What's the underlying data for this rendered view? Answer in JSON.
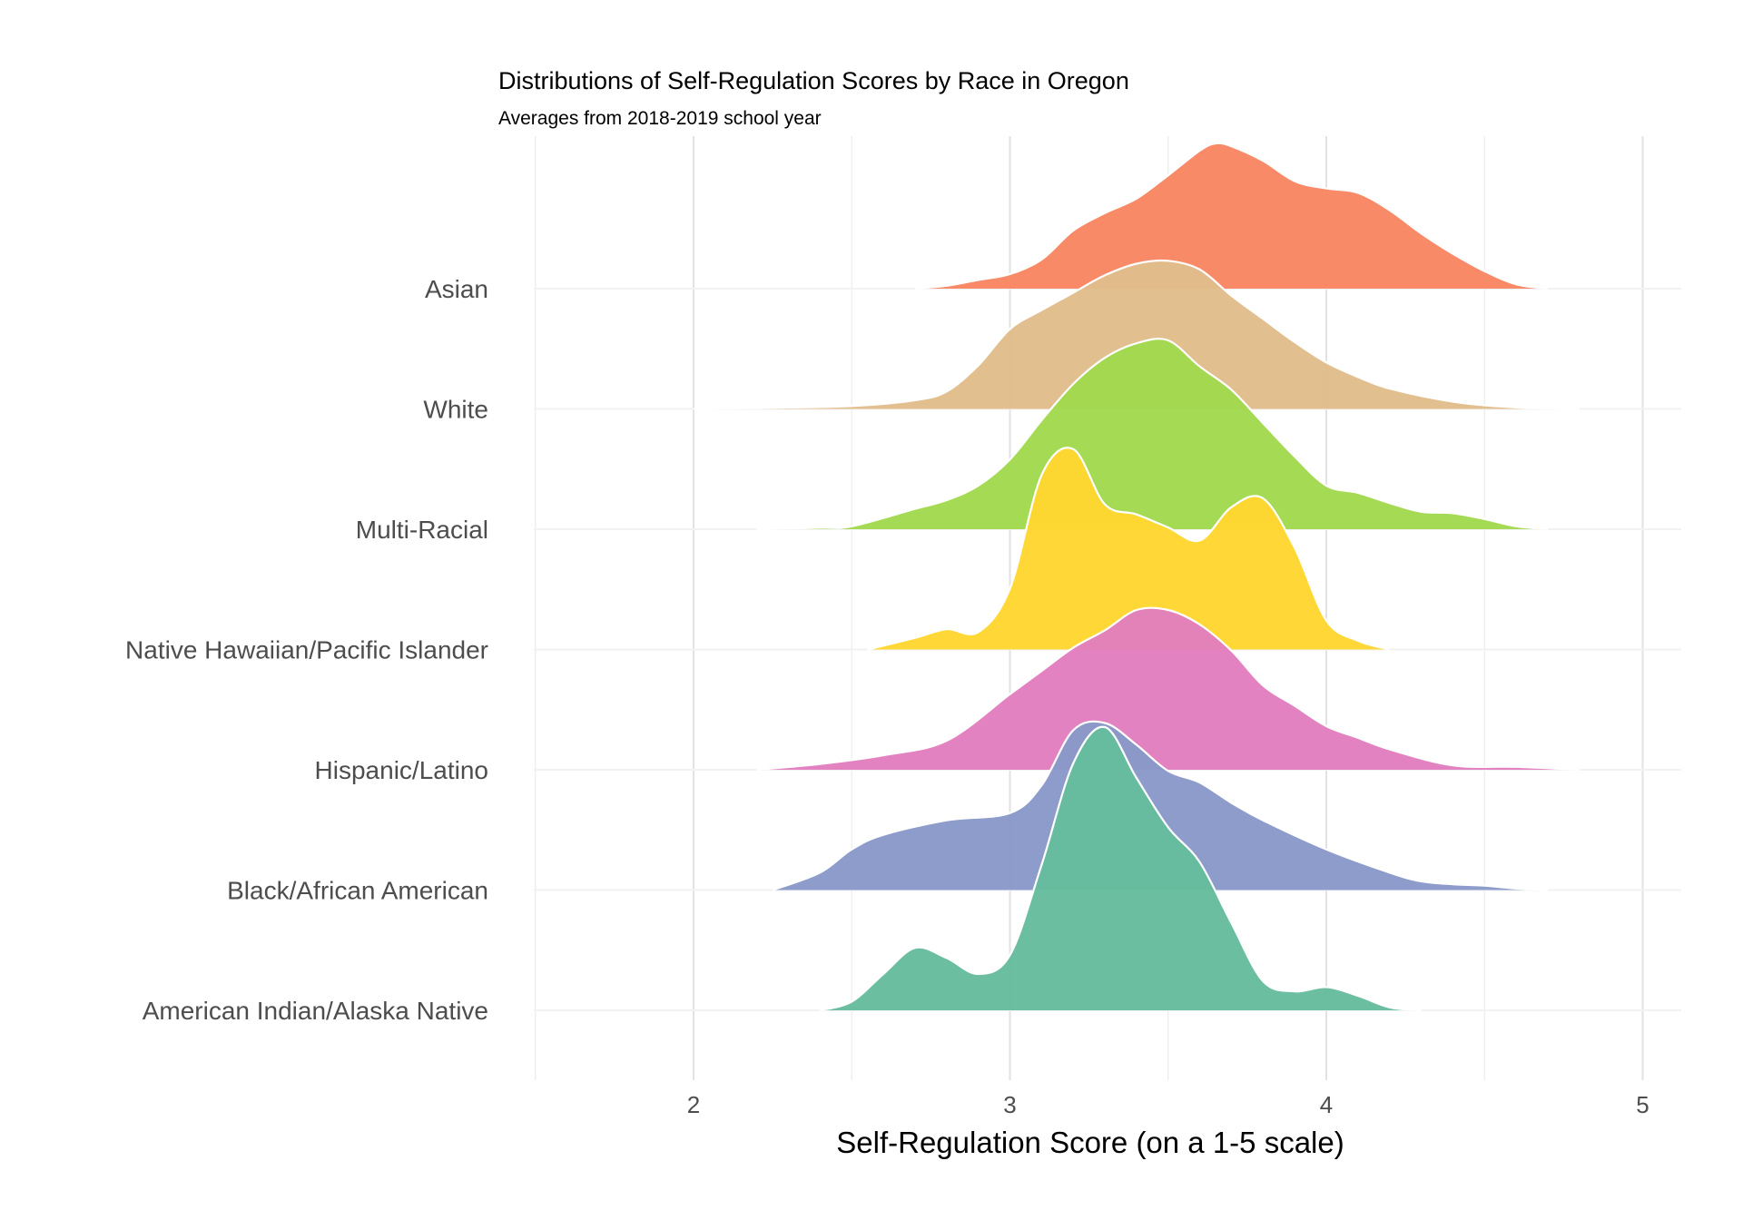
{
  "chart_data": {
    "type": "ridgeline",
    "title": "Distributions of Self-Regulation Scores by Race in Oregon",
    "subtitle": "Averages from 2018-2019 school year",
    "xlabel": "Self-Regulation Score (on a 1-5 scale)",
    "ylabel": "",
    "xlim": [
      1.5,
      5.1
    ],
    "x_ticks": [
      2,
      3,
      4,
      5
    ],
    "x_tick_labels": [
      "2",
      "3",
      "4",
      "5"
    ],
    "grid": true,
    "legend": "none",
    "series": [
      {
        "name": "Asian",
        "color": "#F88662",
        "density": [
          [
            2.7,
            0
          ],
          [
            2.8,
            0.02
          ],
          [
            2.9,
            0.06
          ],
          [
            3.0,
            0.1
          ],
          [
            3.1,
            0.2
          ],
          [
            3.2,
            0.4
          ],
          [
            3.3,
            0.52
          ],
          [
            3.4,
            0.62
          ],
          [
            3.5,
            0.78
          ],
          [
            3.6,
            0.95
          ],
          [
            3.65,
            1.0
          ],
          [
            3.7,
            0.98
          ],
          [
            3.8,
            0.88
          ],
          [
            3.9,
            0.74
          ],
          [
            4.0,
            0.69
          ],
          [
            4.1,
            0.66
          ],
          [
            4.2,
            0.54
          ],
          [
            4.3,
            0.38
          ],
          [
            4.4,
            0.24
          ],
          [
            4.5,
            0.12
          ],
          [
            4.6,
            0.03
          ],
          [
            4.7,
            0
          ]
        ]
      },
      {
        "name": "White",
        "color": "#E0BD8B",
        "density": [
          [
            2.0,
            0
          ],
          [
            2.3,
            0.01
          ],
          [
            2.5,
            0.02
          ],
          [
            2.7,
            0.06
          ],
          [
            2.8,
            0.12
          ],
          [
            2.9,
            0.3
          ],
          [
            3.0,
            0.55
          ],
          [
            3.1,
            0.68
          ],
          [
            3.2,
            0.8
          ],
          [
            3.3,
            0.92
          ],
          [
            3.4,
            1.0
          ],
          [
            3.5,
            1.02
          ],
          [
            3.6,
            0.96
          ],
          [
            3.7,
            0.78
          ],
          [
            3.8,
            0.62
          ],
          [
            3.9,
            0.46
          ],
          [
            4.0,
            0.32
          ],
          [
            4.1,
            0.22
          ],
          [
            4.2,
            0.14
          ],
          [
            4.4,
            0.05
          ],
          [
            4.6,
            0.01
          ],
          [
            4.8,
            0
          ]
        ]
      },
      {
        "name": "Multi-Racial",
        "color": "#A2D94E",
        "density": [
          [
            2.2,
            0
          ],
          [
            2.4,
            0.01
          ],
          [
            2.5,
            0.02
          ],
          [
            2.7,
            0.14
          ],
          [
            2.8,
            0.2
          ],
          [
            2.9,
            0.3
          ],
          [
            3.0,
            0.48
          ],
          [
            3.1,
            0.75
          ],
          [
            3.2,
            1.0
          ],
          [
            3.3,
            1.18
          ],
          [
            3.4,
            1.28
          ],
          [
            3.5,
            1.3
          ],
          [
            3.6,
            1.12
          ],
          [
            3.7,
            0.96
          ],
          [
            3.8,
            0.73
          ],
          [
            3.9,
            0.5
          ],
          [
            4.0,
            0.3
          ],
          [
            4.1,
            0.25
          ],
          [
            4.2,
            0.18
          ],
          [
            4.3,
            0.12
          ],
          [
            4.4,
            0.11
          ],
          [
            4.5,
            0.07
          ],
          [
            4.6,
            0.02
          ],
          [
            4.7,
            0
          ]
        ]
      },
      {
        "name": "Native Hawaiian/Pacific Islander",
        "color": "#FFD732",
        "density": [
          [
            2.55,
            0
          ],
          [
            2.7,
            0.08
          ],
          [
            2.8,
            0.14
          ],
          [
            2.9,
            0.12
          ],
          [
            3.0,
            0.42
          ],
          [
            3.1,
            1.2
          ],
          [
            3.2,
            1.38
          ],
          [
            3.3,
            1.0
          ],
          [
            3.4,
            0.93
          ],
          [
            3.5,
            0.84
          ],
          [
            3.6,
            0.75
          ],
          [
            3.7,
            0.98
          ],
          [
            3.8,
            1.04
          ],
          [
            3.9,
            0.7
          ],
          [
            4.0,
            0.2
          ],
          [
            4.1,
            0.06
          ],
          [
            4.2,
            0
          ]
        ]
      },
      {
        "name": "Hispanic/Latino",
        "color": "#E27EBE",
        "density": [
          [
            2.2,
            0
          ],
          [
            2.4,
            0.04
          ],
          [
            2.6,
            0.1
          ],
          [
            2.8,
            0.2
          ],
          [
            3.0,
            0.52
          ],
          [
            3.1,
            0.68
          ],
          [
            3.2,
            0.84
          ],
          [
            3.3,
            0.96
          ],
          [
            3.4,
            1.1
          ],
          [
            3.5,
            1.1
          ],
          [
            3.6,
            1.0
          ],
          [
            3.7,
            0.82
          ],
          [
            3.8,
            0.58
          ],
          [
            3.9,
            0.44
          ],
          [
            4.0,
            0.3
          ],
          [
            4.1,
            0.22
          ],
          [
            4.2,
            0.14
          ],
          [
            4.4,
            0.03
          ],
          [
            4.6,
            0.02
          ],
          [
            4.8,
            0
          ]
        ]
      },
      {
        "name": "Black/African American",
        "color": "#8999C8",
        "density": [
          [
            2.25,
            0
          ],
          [
            2.4,
            0.12
          ],
          [
            2.5,
            0.28
          ],
          [
            2.6,
            0.38
          ],
          [
            2.8,
            0.48
          ],
          [
            3.0,
            0.53
          ],
          [
            3.1,
            0.72
          ],
          [
            3.2,
            1.1
          ],
          [
            3.3,
            1.15
          ],
          [
            3.4,
            1.0
          ],
          [
            3.5,
            0.82
          ],
          [
            3.6,
            0.74
          ],
          [
            3.7,
            0.6
          ],
          [
            3.8,
            0.48
          ],
          [
            4.0,
            0.28
          ],
          [
            4.2,
            0.12
          ],
          [
            4.3,
            0.06
          ],
          [
            4.4,
            0.04
          ],
          [
            4.5,
            0.03
          ],
          [
            4.6,
            0.01
          ],
          [
            4.7,
            0
          ]
        ]
      },
      {
        "name": "American Indian/Alaska Native",
        "color": "#66BD9D",
        "density": [
          [
            2.4,
            0
          ],
          [
            2.5,
            0.06
          ],
          [
            2.6,
            0.25
          ],
          [
            2.7,
            0.43
          ],
          [
            2.8,
            0.36
          ],
          [
            2.9,
            0.25
          ],
          [
            3.0,
            0.38
          ],
          [
            3.1,
            1.0
          ],
          [
            3.2,
            1.7
          ],
          [
            3.3,
            1.95
          ],
          [
            3.4,
            1.6
          ],
          [
            3.5,
            1.26
          ],
          [
            3.6,
            1.02
          ],
          [
            3.7,
            0.6
          ],
          [
            3.8,
            0.2
          ],
          [
            3.9,
            0.13
          ],
          [
            4.0,
            0.16
          ],
          [
            4.1,
            0.1
          ],
          [
            4.2,
            0.02
          ],
          [
            4.3,
            0
          ]
        ]
      }
    ]
  }
}
